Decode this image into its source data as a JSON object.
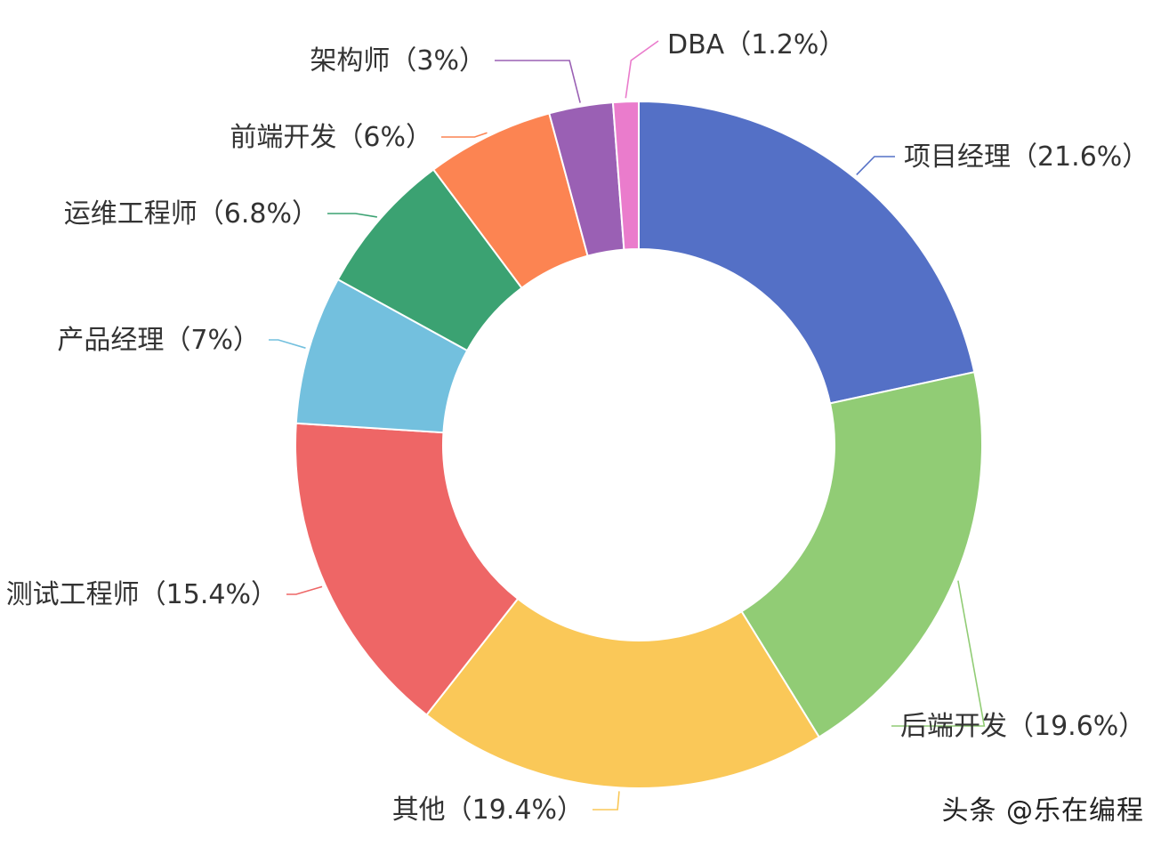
{
  "chart_data": {
    "type": "pie",
    "donut": true,
    "title": "",
    "slices": [
      {
        "label": "项目经理（21.6%）",
        "name": "项目经理",
        "value": 21.6,
        "color": "#5470c6"
      },
      {
        "label": "后端开发（19.6%）",
        "name": "后端开发",
        "value": 19.6,
        "color": "#91cc75"
      },
      {
        "label": "其他（19.4%）",
        "name": "其他",
        "value": 19.4,
        "color": "#fac858"
      },
      {
        "label": "测试工程师（15.4%）",
        "name": "测试工程师",
        "value": 15.4,
        "color": "#ee6666"
      },
      {
        "label": "产品经理（7%）",
        "name": "产品经理",
        "value": 7,
        "color": "#73c0de"
      },
      {
        "label": "运维工程师（6.8%）",
        "name": "运维工程师",
        "value": 6.8,
        "color": "#3ba272"
      },
      {
        "label": "前端开发（6%）",
        "name": "前端开发",
        "value": 6,
        "color": "#fc8452"
      },
      {
        "label": "架构师（3%）",
        "name": "架构师",
        "value": 3,
        "color": "#9a60b4"
      },
      {
        "label": "DBA（1.2%）",
        "name": "DBA",
        "value": 1.2,
        "color": "#ea7ccc"
      }
    ]
  },
  "watermark": "头条 @乐在编程"
}
